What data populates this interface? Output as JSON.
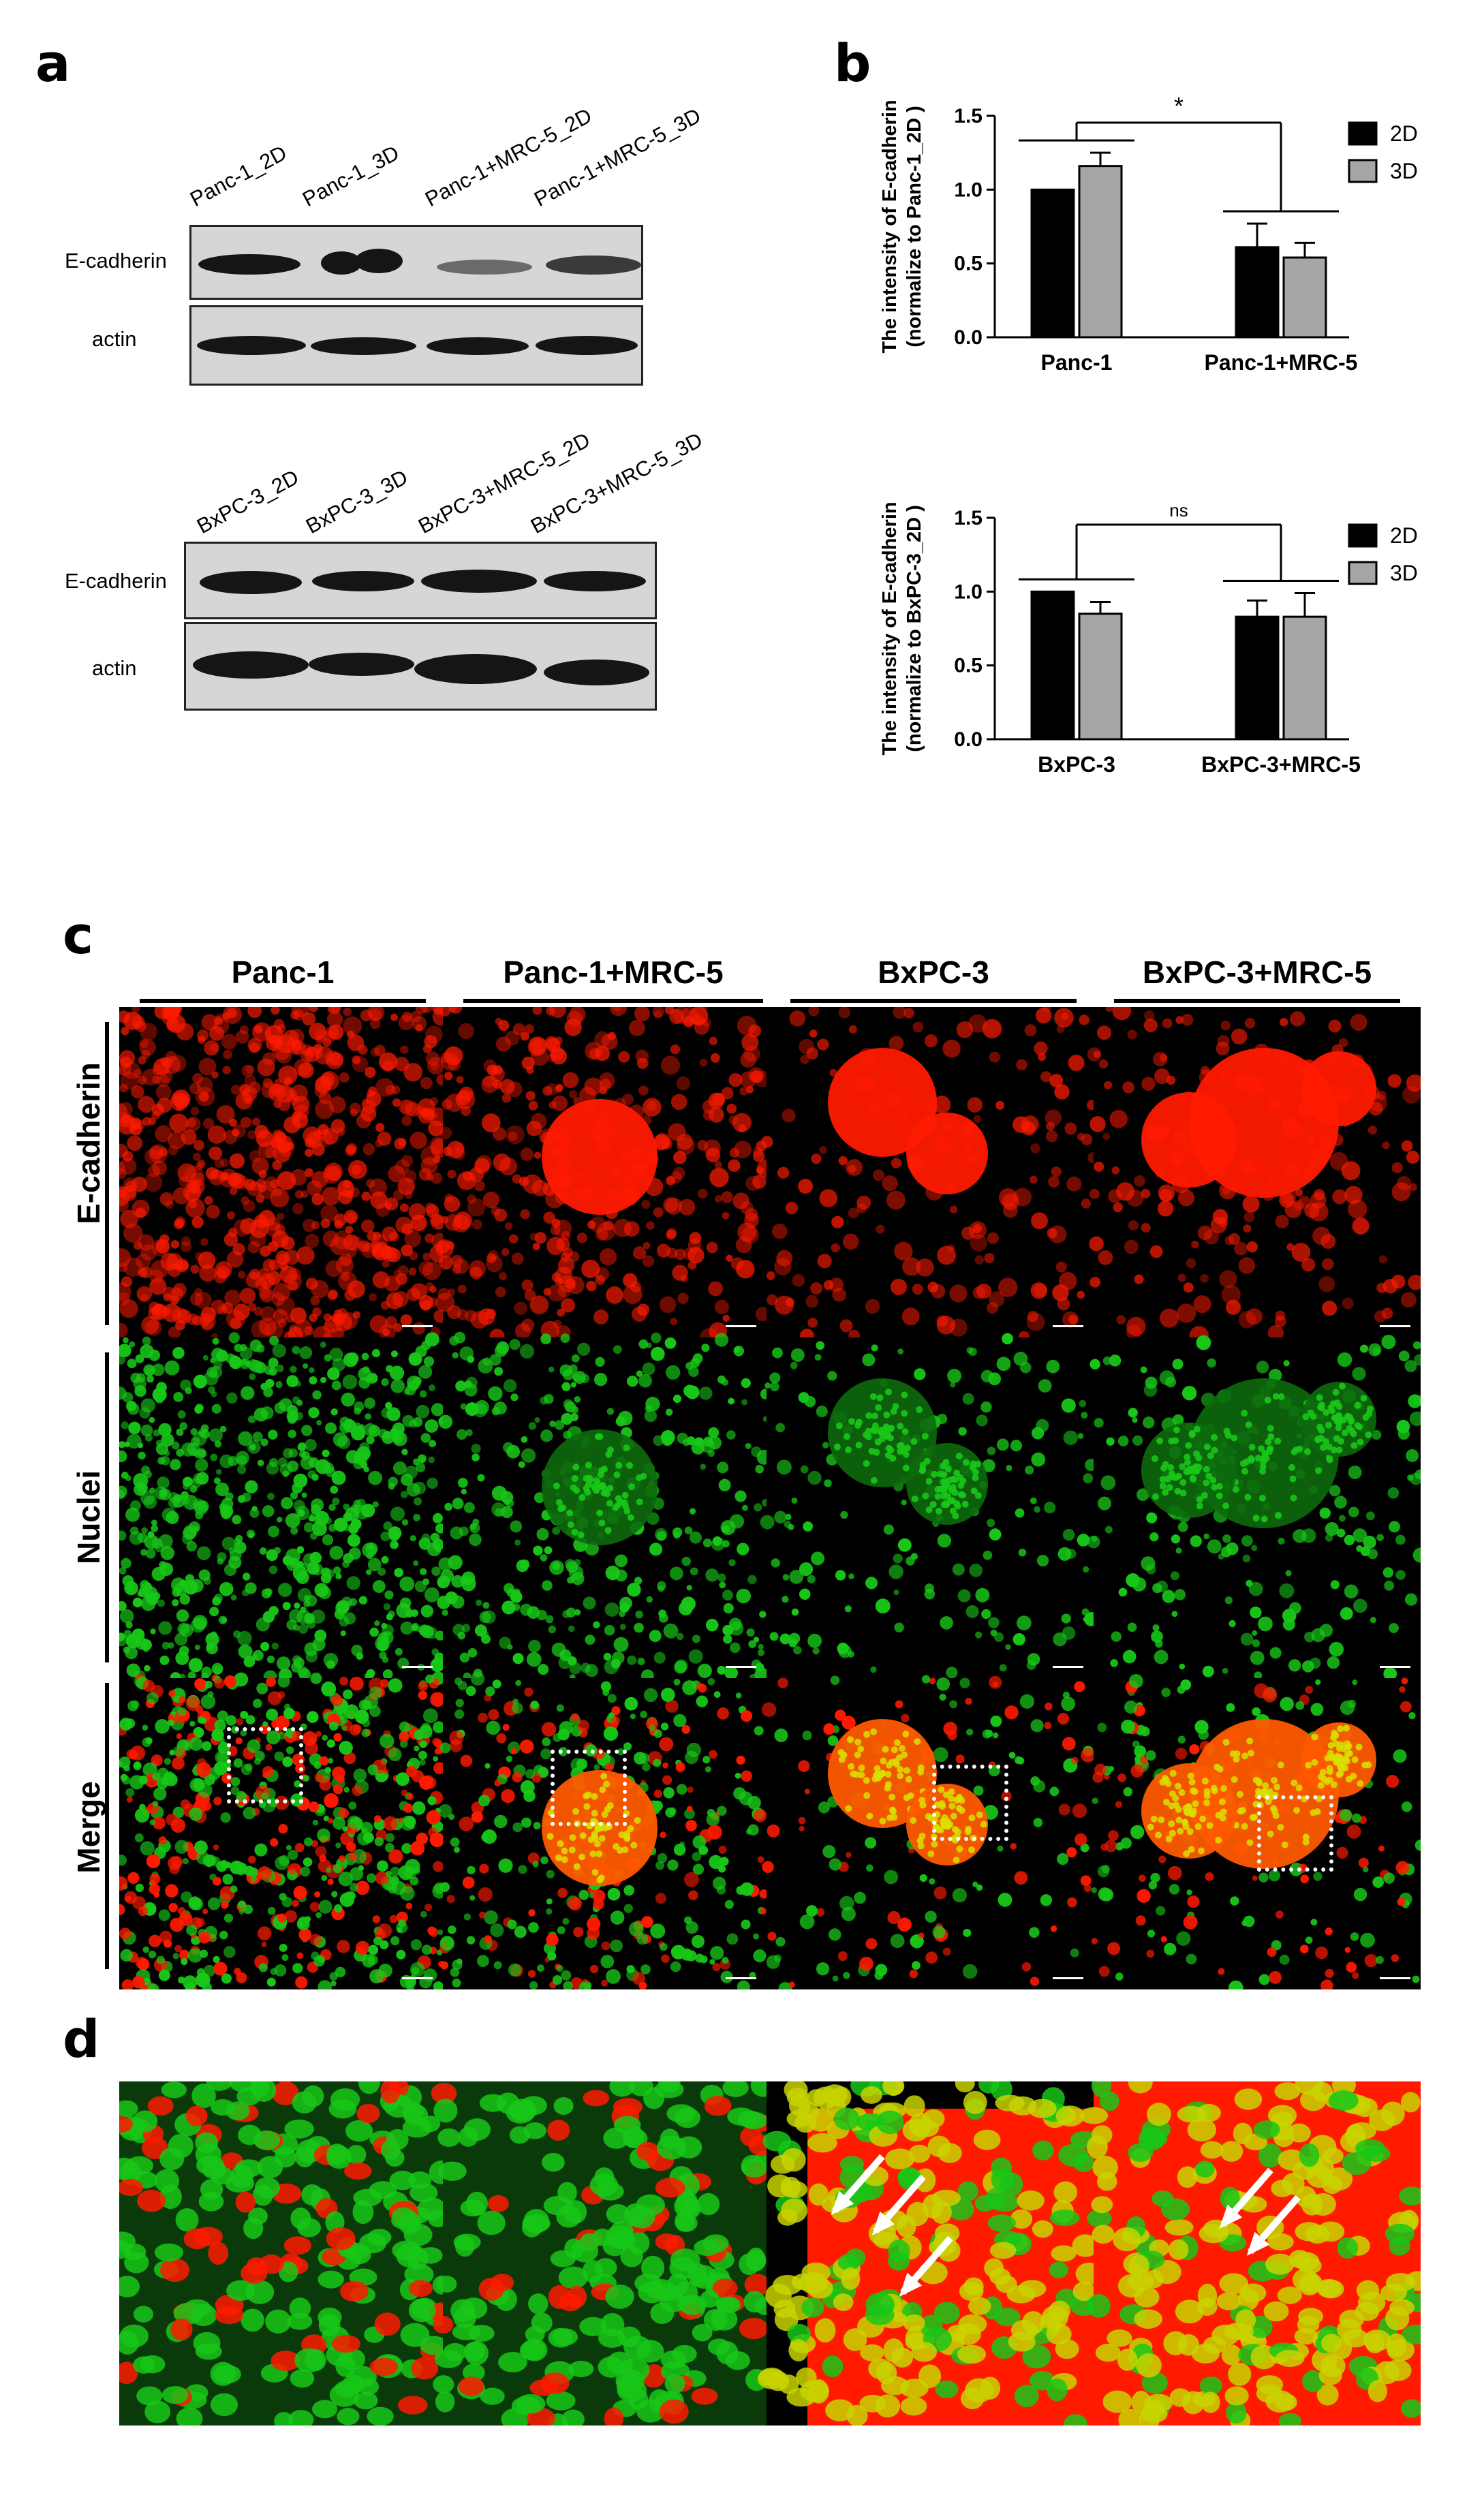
{
  "panels": {
    "a": "a",
    "b": "b",
    "c": "c",
    "d": "d"
  },
  "blot_top": {
    "lanes": [
      "Panc-1_2D",
      "Panc-1_3D",
      "Panc-1+MRC-5_2D",
      "Panc-1+MRC-5_3D"
    ],
    "rows": [
      "E-cadherin",
      "actin"
    ]
  },
  "blot_bottom": {
    "lanes": [
      "BxPC-3_2D",
      "BxPC-3_3D",
      "BxPC-3+MRC-5_2D",
      "BxPC-3+MRC-5_3D"
    ],
    "rows": [
      "E-cadherin",
      "actin"
    ]
  },
  "microscopy": {
    "columns": [
      "Panc-1",
      "Panc-1+MRC-5",
      "BxPC-3",
      "BxPC-3+MRC-5"
    ],
    "rows": [
      "E-cadherin",
      "Nuclei",
      "Merge"
    ]
  },
  "colors": {
    "bar_2d": "#000000",
    "bar_3d": "#a6a6a6",
    "ecadherin": "#ff1a00",
    "nuclei": "#18c718"
  },
  "chart_data": [
    {
      "type": "bar",
      "categories": [
        "Panc-1",
        "Panc-1+MRC-5"
      ],
      "series": [
        {
          "name": "2D",
          "values": [
            1.0,
            0.61
          ],
          "errors": [
            0.0,
            0.16
          ]
        },
        {
          "name": "3D",
          "values": [
            1.16,
            0.54
          ],
          "errors": [
            0.09,
            0.1
          ]
        }
      ],
      "ylabel_line1": "The intensity of E-cadherin",
      "ylabel_line2": "(normalize to Panc-1_2D )",
      "ylim": [
        0,
        1.5
      ],
      "yticks": [
        "0.0",
        "0.5",
        "1.0",
        "1.5"
      ],
      "significance": "*",
      "legend": "top-right",
      "grid": false
    },
    {
      "type": "bar",
      "categories": [
        "BxPC-3",
        "BxPC-3+MRC-5"
      ],
      "series": [
        {
          "name": "2D",
          "values": [
            1.0,
            0.83
          ],
          "errors": [
            0.0,
            0.11
          ]
        },
        {
          "name": "3D",
          "values": [
            0.85,
            0.83
          ],
          "errors": [
            0.08,
            0.16
          ]
        }
      ],
      "ylabel_line1": "The intensity of E-cadherin",
      "ylabel_line2": "(normalize to BxPC-3_2D )",
      "ylim": [
        0,
        1.5
      ],
      "yticks": [
        "0.0",
        "0.5",
        "1.0",
        "1.5"
      ],
      "significance": "ns",
      "legend": "top-right",
      "grid": false
    }
  ]
}
